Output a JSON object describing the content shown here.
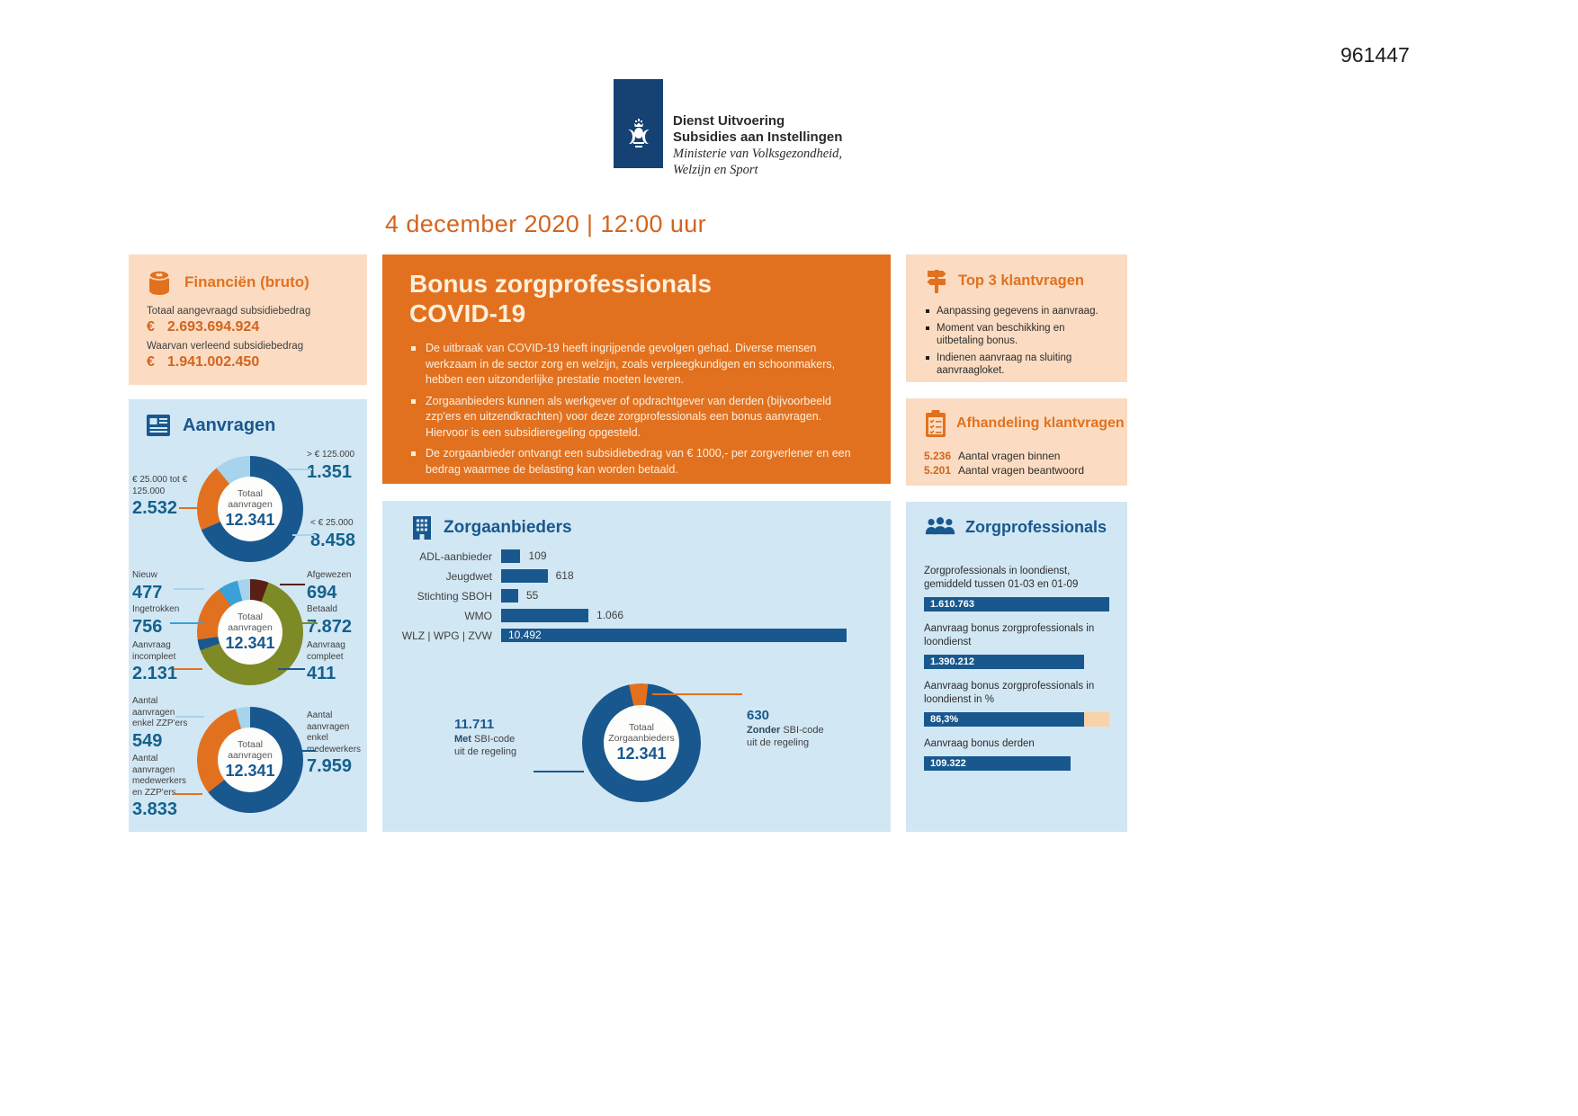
{
  "page": {
    "ref": "961447",
    "date": "4 december 2020 | 12:00 uur"
  },
  "logo": {
    "org_line1": "Dienst Uitvoering",
    "org_line2": "Subsidies aan Instellingen",
    "ministry_line1": "Ministerie van Volksgezondheid,",
    "ministry_line2": "Welzijn en Sport"
  },
  "colors": {
    "orange": "#e2711f",
    "peach_panel": "#fbdcc2",
    "blue_panel": "#d2e7f4",
    "dark_blue": "#19588e",
    "medium_blue": "#3aa0d8",
    "light_blue": "#a7d3ed",
    "olive": "#7e8a26",
    "maroon": "#571f16",
    "bar_remainder": "#f8d2a8",
    "logo_blue": "#154273",
    "date_orange": "#d3641e"
  },
  "financien": {
    "title": "Financiën (bruto)",
    "row1_label": "Totaal aangevraagd subsidiebedrag",
    "row1_euro": "€",
    "row1_amount": "2.693.694.924",
    "row2_label": "Waarvan verleend subsidiebedrag",
    "row2_euro": "€",
    "row2_amount": "1.941.002.450"
  },
  "aanvragen": {
    "title": "Aanvragen",
    "donut1": {
      "center_label": "Totaal aanvragen",
      "center_value": "12.341",
      "segments": [
        {
          "label": "< € 25.000",
          "value": 8458,
          "color": "#19588e"
        },
        {
          "label": "€ 25.000 tot € 125.000",
          "value": 2532,
          "color": "#e2711f"
        },
        {
          "label": "> € 125.000",
          "value": 1351,
          "color": "#a7d3ed"
        }
      ],
      "callouts": [
        {
          "label": "€ 25.000 tot € 125.000",
          "value": "2.532"
        },
        {
          "label": "> € 125.000",
          "value": "1.351"
        },
        {
          "label": "< € 25.000",
          "value": "8.458"
        }
      ]
    },
    "donut2": {
      "center_label": "Totaal aanvragen",
      "center_value": "12.341",
      "segments": [
        {
          "label": "Afgewezen",
          "value": 694,
          "color": "#571f16"
        },
        {
          "label": "Betaald",
          "value": 7872,
          "color": "#7e8a26"
        },
        {
          "label": "Aanvraag compleet",
          "value": 411,
          "color": "#19588e"
        },
        {
          "label": "Aanvraag incompleet",
          "value": 2131,
          "color": "#e2711f"
        },
        {
          "label": "Ingetrokken",
          "value": 756,
          "color": "#3aa0d8"
        },
        {
          "label": "Nieuw",
          "value": 477,
          "color": "#a7d3ed"
        }
      ],
      "callouts": [
        {
          "label": "Nieuw",
          "value": "477"
        },
        {
          "label": "Ingetrokken",
          "value": "756"
        },
        {
          "label": "Aanvraag incompleet",
          "value": "2.131"
        },
        {
          "label": "Afgewezen",
          "value": "694"
        },
        {
          "label": "Betaald",
          "value": "7.872"
        },
        {
          "label": "Aanvraag compleet",
          "value": "411"
        }
      ]
    },
    "donut3": {
      "center_label": "Totaal aanvragen",
      "center_value": "12.341",
      "segments": [
        {
          "label": "Aantal aanvragen enkel medewerkers",
          "value": 7959,
          "color": "#19588e"
        },
        {
          "label": "Aantal aanvragen medewerkers en ZZP'ers",
          "value": 3833,
          "color": "#e2711f"
        },
        {
          "label": "Aantal aanvragen enkel ZZP'ers",
          "value": 549,
          "color": "#a7d3ed"
        }
      ],
      "callouts": [
        {
          "label": "Aantal aanvragen enkel ZZP'ers",
          "value": "549"
        },
        {
          "label": "Aantal aanvragen medewerkers en ZZP'ers",
          "value": "3.833"
        },
        {
          "label": "Aantal aanvragen enkel medewerkers",
          "value": "7.959"
        }
      ]
    }
  },
  "bonus_panel": {
    "title_line1": "Bonus zorgprofessionals",
    "title_line2": "COVID-19",
    "bullets": [
      "De uitbraak van COVID-19 heeft ingrijpende gevolgen gehad. Diverse mensen werkzaam in de sector zorg en welzijn, zoals verpleegkundigen en schoonmakers, hebben een uitzonderlijke prestatie moeten leveren.",
      "Zorgaanbieders kunnen als werkgever of opdrachtgever van derden (bijvoorbeeld zzp'ers en uitzendkrachten) voor deze zorgprofessionals een bonus aanvragen. Hiervoor is een subsidieregeling opgesteld.",
      "De zorgaanbieder ontvangt een subsidiebedrag van € 1000,- per zorgverlener en een bedrag waarmee de belasting kan worden betaald."
    ]
  },
  "zorgaanbieders": {
    "title": "Zorgaanbieders",
    "bars": [
      {
        "label": "ADL-aanbieder",
        "value": "109",
        "width_pct": 5.2
      },
      {
        "label": "Jeugdwet",
        "value": "618",
        "width_pct": 12.5
      },
      {
        "label": "Stichting SBOH",
        "value": "55",
        "width_pct": 4.6
      },
      {
        "label": "WMO",
        "value": "1.066",
        "width_pct": 23.5
      },
      {
        "label": "WLZ | WPG | ZVW",
        "value": "10.492",
        "width_pct": 93
      }
    ],
    "donut": {
      "start_deg": -12,
      "center_label": "Totaal Zorgaanbieders",
      "center_value": "12.341",
      "segments": [
        {
          "label": "Zonder SBI-code uit de regeling",
          "value": 630,
          "color": "#e2711f"
        },
        {
          "label": "Met SBI-code uit de regeling",
          "value": 11711,
          "color": "#19588e"
        }
      ],
      "callout_left": {
        "value": "11.711",
        "bold_word": "Met",
        "rest_line": "SBI-code",
        "line2": "uit de regeling"
      },
      "callout_right": {
        "value": "630",
        "bold_word": "Zonder",
        "rest_line": "SBI-code",
        "line2": "uit de regeling"
      }
    }
  },
  "top3": {
    "title": "Top 3 klantvragen",
    "bullets": [
      "Aanpassing gegevens in aanvraag.",
      "Moment van beschikking en uitbetaling bonus.",
      "Indienen aanvraag na sluiting aanvraagloket."
    ]
  },
  "afhandeling": {
    "title": "Afhandeling klantvragen",
    "rows": [
      {
        "value": "5.236",
        "label": "Aantal vragen binnen"
      },
      {
        "value": "5.201",
        "label": "Aantal vragen beantwoord"
      }
    ]
  },
  "zorgprofessionals": {
    "title": "Zorgprofessionals",
    "bars": [
      {
        "label": "Zorgprofessionals in loondienst, gemiddeld tussen 01-03 en 01-09",
        "value": "1.610.763",
        "width_pct": 100,
        "remainder": false
      },
      {
        "label": "Aanvraag bonus zorgprofessionals in loondienst",
        "value": "1.390.212",
        "width_pct": 86.3,
        "remainder": false
      },
      {
        "label": "Aanvraag bonus zorgprofessionals in loondienst in %",
        "value": "86,3%",
        "width_pct": 86.3,
        "remainder": true
      },
      {
        "label": "Aanvraag bonus derden",
        "value": "109.322",
        "width_pct": 79,
        "remainder": false
      }
    ]
  },
  "chart_data": [
    {
      "type": "pie",
      "panel": "Aanvragen",
      "categories": [
        "< € 25.000",
        "€ 25.000 tot € 125.000",
        "> € 125.000"
      ],
      "values": [
        8458,
        2532,
        1351
      ],
      "colors": [
        "#19588e",
        "#e2711f",
        "#a7d3ed"
      ],
      "center_label": "Totaal aanvragen 12.341",
      "donut": true
    },
    {
      "type": "pie",
      "panel": "Aanvragen",
      "categories": [
        "Afgewezen",
        "Betaald",
        "Aanvraag compleet",
        "Aanvraag incompleet",
        "Ingetrokken",
        "Nieuw"
      ],
      "values": [
        694,
        7872,
        411,
        2131,
        756,
        477
      ],
      "colors": [
        "#571f16",
        "#7e8a26",
        "#19588e",
        "#e2711f",
        "#3aa0d8",
        "#a7d3ed"
      ],
      "center_label": "Totaal aanvragen 12.341",
      "donut": true
    },
    {
      "type": "pie",
      "panel": "Aanvragen",
      "categories": [
        "Aantal aanvragen enkel medewerkers",
        "Aantal aanvragen medewerkers en ZZP'ers",
        "Aantal aanvragen enkel ZZP'ers"
      ],
      "values": [
        7959,
        3833,
        549
      ],
      "colors": [
        "#19588e",
        "#e2711f",
        "#a7d3ed"
      ],
      "center_label": "Totaal aanvragen 12.341",
      "donut": true
    },
    {
      "type": "bar",
      "panel": "Zorgaanbieders",
      "orientation": "horizontal",
      "categories": [
        "ADL-aanbieder",
        "Jeugdwet",
        "Stichting SBOH",
        "WMO",
        "WLZ | WPG | ZVW"
      ],
      "values": [
        109,
        618,
        55,
        1066,
        10492
      ],
      "note": "bar lengths niet lineair geschaald in origineel"
    },
    {
      "type": "pie",
      "panel": "Zorgaanbieders",
      "categories": [
        "Met SBI-code uit de regeling",
        "Zonder SBI-code uit de regeling"
      ],
      "values": [
        11711,
        630
      ],
      "colors": [
        "#19588e",
        "#e2711f"
      ],
      "center_label": "Totaal Zorgaanbieders 12.341",
      "donut": true
    },
    {
      "type": "bar",
      "panel": "Zorgprofessionals",
      "orientation": "horizontal",
      "categories": [
        "Zorgprofessionals in loondienst, gemiddeld tussen 01-03 en 01-09",
        "Aanvraag bonus zorgprofessionals in loondienst",
        "Aanvraag bonus zorgprofessionals in loondienst in %",
        "Aanvraag bonus derden"
      ],
      "values": [
        "1.610.763",
        "1.390.212",
        "86,3%",
        "109.322"
      ]
    }
  ]
}
